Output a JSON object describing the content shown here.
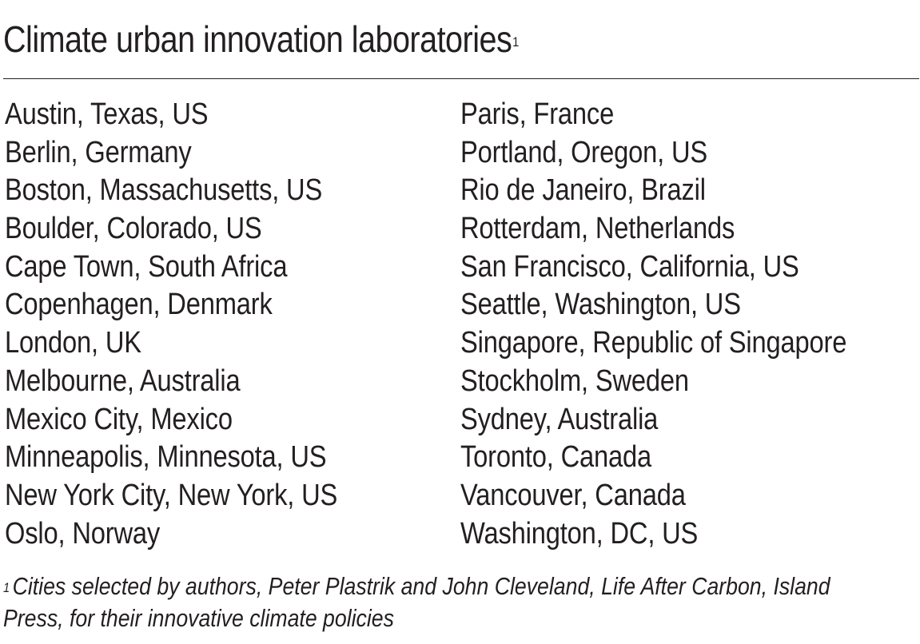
{
  "title": {
    "text": "Climate urban innovation laboratories",
    "footnote_ref": "1"
  },
  "cities_left": [
    "Austin, Texas, US",
    "Berlin, Germany",
    "Boston, Massachusetts, US",
    "Boulder, Colorado, US",
    "Cape Town, South Africa",
    "Copenhagen, Denmark",
    "London, UK",
    "Melbourne, Australia",
    "Mexico City, Mexico",
    "Minneapolis, Minnesota, US",
    "New York City, New York, US",
    "Oslo, Norway"
  ],
  "cities_right": [
    "Paris, France",
    "Portland, Oregon, US",
    "Rio de Janeiro, Brazil",
    "Rotterdam, Netherlands",
    "San Francisco, California, US",
    "Seattle, Washington, US",
    "Singapore, Republic of Singapore",
    "Stockholm, Sweden",
    "Sydney, Australia",
    "Toronto, Canada",
    "Vancouver, Canada",
    "Washington, DC, US"
  ],
  "footnote": {
    "marker": "1",
    "line1": "Cities selected by authors, Peter Plastrik and John Cleveland, Life After Carbon, Island",
    "line2": "Press, for their innovative climate policies"
  }
}
